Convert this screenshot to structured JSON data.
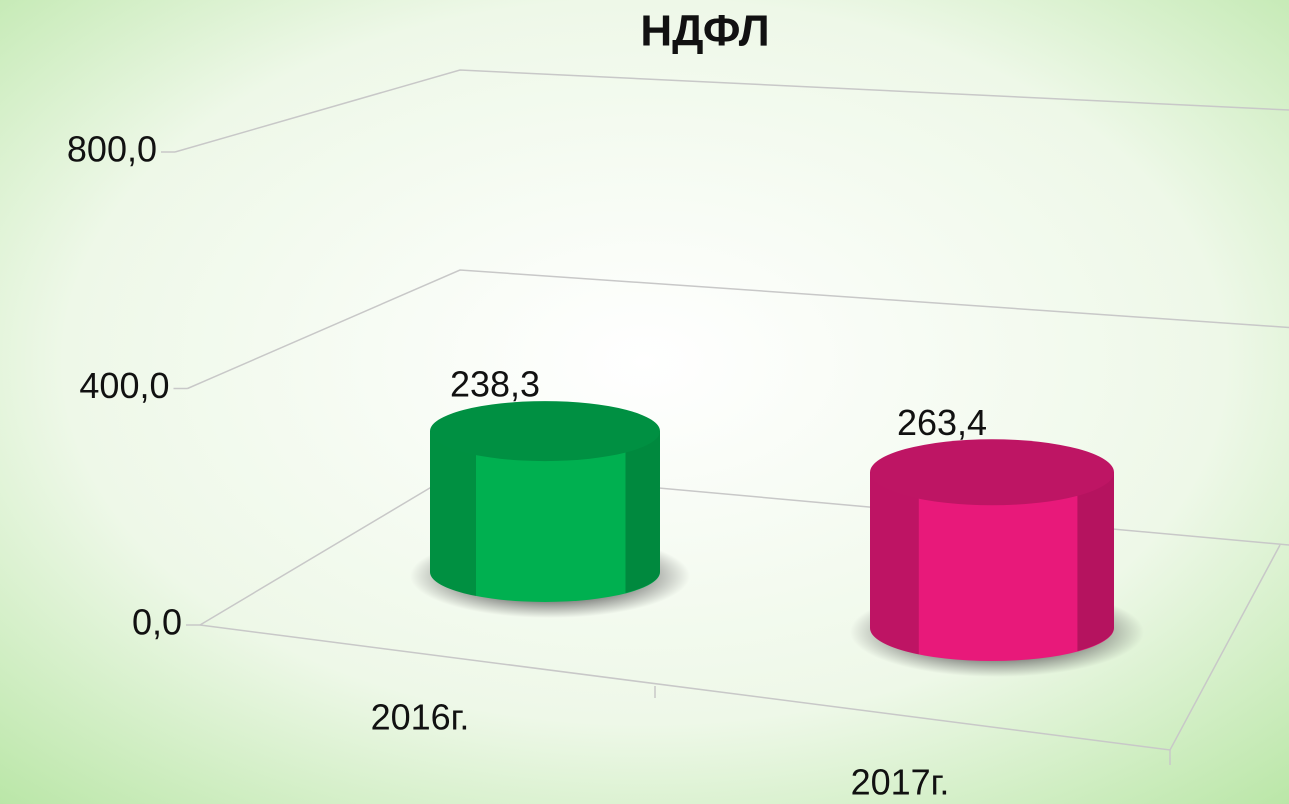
{
  "chart_data": {
    "type": "cylinder",
    "title": "НДФЛ",
    "categories": [
      "2016г.",
      "2017г."
    ],
    "values": [
      238.3,
      263.4
    ],
    "value_labels": [
      "238,3",
      "263,4"
    ],
    "colors": [
      "#00b050",
      "#e8197a"
    ],
    "ylim": [
      0,
      800
    ],
    "yticks": [
      {
        "value": 0,
        "label": "0,0"
      },
      {
        "value": 400,
        "label": "400,0"
      },
      {
        "value": 800,
        "label": "800,0"
      }
    ],
    "grid": true
  }
}
